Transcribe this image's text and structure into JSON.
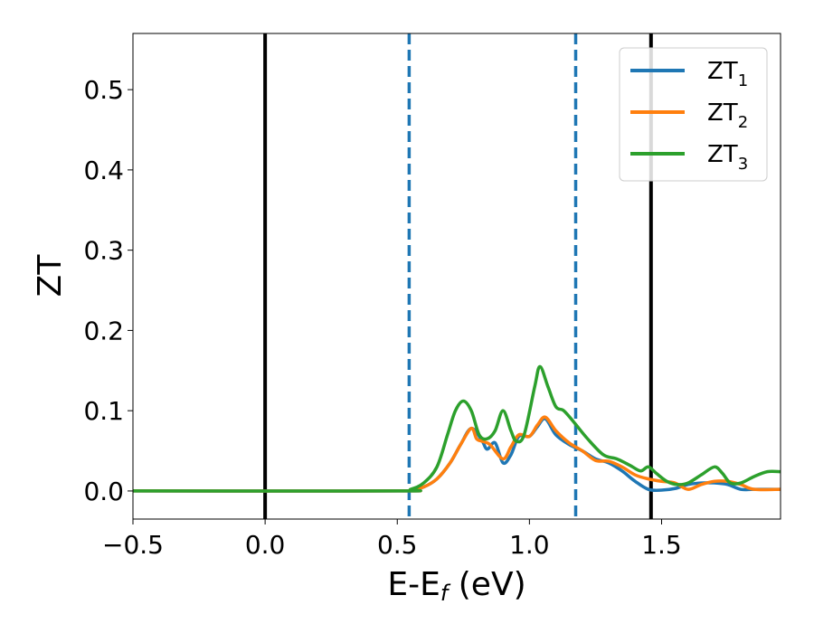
{
  "chart_data": {
    "type": "line",
    "xlabel": "E-E",
    "xlabel_sub": "f",
    "xlabel_unit": " (eV)",
    "ylabel": "ZT",
    "xlim": [
      -0.5,
      1.95
    ],
    "ylim": [
      -0.035,
      0.57
    ],
    "xticks": [
      -0.5,
      0.0,
      0.5,
      1.0,
      1.5
    ],
    "xtick_labels": [
      "−0.5",
      "0.0",
      "0.5",
      "1.0",
      "1.5"
    ],
    "yticks": [
      0.0,
      0.1,
      0.2,
      0.3,
      0.4,
      0.5
    ],
    "ytick_labels": [
      "0.0",
      "0.1",
      "0.2",
      "0.3",
      "0.4",
      "0.5"
    ],
    "grid": false,
    "legend_position": "top-right",
    "vlines": [
      {
        "x": 0.0,
        "color": "#000000",
        "style": "solid"
      },
      {
        "x": 1.46,
        "color": "#000000",
        "style": "solid"
      },
      {
        "x": 0.545,
        "color": "#1f77b4",
        "style": "dashed"
      },
      {
        "x": 1.175,
        "color": "#1f77b4",
        "style": "dashed"
      }
    ],
    "series": [
      {
        "name": "ZT",
        "sub": "1",
        "color": "#1f77b4",
        "points": [
          [
            -0.5,
            0
          ],
          [
            0.5,
            0
          ],
          [
            0.55,
            0.001
          ],
          [
            0.6,
            0.005
          ],
          [
            0.65,
            0.015
          ],
          [
            0.7,
            0.035
          ],
          [
            0.74,
            0.058
          ],
          [
            0.78,
            0.078
          ],
          [
            0.82,
            0.063
          ],
          [
            0.84,
            0.052
          ],
          [
            0.87,
            0.06
          ],
          [
            0.9,
            0.035
          ],
          [
            0.93,
            0.045
          ],
          [
            0.96,
            0.068
          ],
          [
            1.0,
            0.068
          ],
          [
            1.03,
            0.08
          ],
          [
            1.06,
            0.09
          ],
          [
            1.1,
            0.07
          ],
          [
            1.15,
            0.058
          ],
          [
            1.2,
            0.05
          ],
          [
            1.25,
            0.04
          ],
          [
            1.3,
            0.035
          ],
          [
            1.35,
            0.025
          ],
          [
            1.4,
            0.012
          ],
          [
            1.45,
            0.002
          ],
          [
            1.5,
            0.001
          ],
          [
            1.55,
            0.003
          ],
          [
            1.6,
            0.008
          ],
          [
            1.65,
            0.01
          ],
          [
            1.7,
            0.01
          ],
          [
            1.75,
            0.008
          ],
          [
            1.8,
            0.002
          ],
          [
            1.85,
            0.002
          ],
          [
            1.95,
            0.002
          ]
        ]
      },
      {
        "name": "ZT",
        "sub": "2",
        "color": "#ff7f0e",
        "points": [
          [
            -0.5,
            0
          ],
          [
            0.5,
            0
          ],
          [
            0.55,
            0.001
          ],
          [
            0.6,
            0.005
          ],
          [
            0.65,
            0.015
          ],
          [
            0.7,
            0.035
          ],
          [
            0.74,
            0.058
          ],
          [
            0.78,
            0.078
          ],
          [
            0.8,
            0.065
          ],
          [
            0.82,
            0.062
          ],
          [
            0.85,
            0.058
          ],
          [
            0.9,
            0.04
          ],
          [
            0.93,
            0.055
          ],
          [
            0.96,
            0.07
          ],
          [
            1.0,
            0.068
          ],
          [
            1.03,
            0.082
          ],
          [
            1.06,
            0.092
          ],
          [
            1.1,
            0.075
          ],
          [
            1.15,
            0.06
          ],
          [
            1.2,
            0.05
          ],
          [
            1.25,
            0.038
          ],
          [
            1.3,
            0.037
          ],
          [
            1.35,
            0.03
          ],
          [
            1.4,
            0.02
          ],
          [
            1.45,
            0.015
          ],
          [
            1.5,
            0.012
          ],
          [
            1.55,
            0.01
          ],
          [
            1.6,
            0.002
          ],
          [
            1.65,
            0.008
          ],
          [
            1.7,
            0.012
          ],
          [
            1.75,
            0.012
          ],
          [
            1.8,
            0.008
          ],
          [
            1.85,
            0.002
          ],
          [
            1.95,
            0.002
          ]
        ]
      },
      {
        "name": "ZT",
        "sub": "3",
        "color": "#2ca02c",
        "points": [
          [
            -0.5,
            0
          ],
          [
            0.5,
            0
          ],
          [
            0.55,
            0.002
          ],
          [
            0.6,
            0.01
          ],
          [
            0.65,
            0.03
          ],
          [
            0.69,
            0.07
          ],
          [
            0.72,
            0.1
          ],
          [
            0.75,
            0.112
          ],
          [
            0.78,
            0.1
          ],
          [
            0.81,
            0.07
          ],
          [
            0.84,
            0.065
          ],
          [
            0.87,
            0.075
          ],
          [
            0.9,
            0.1
          ],
          [
            0.93,
            0.075
          ],
          [
            0.95,
            0.062
          ],
          [
            0.98,
            0.07
          ],
          [
            1.02,
            0.13
          ],
          [
            1.04,
            0.155
          ],
          [
            1.07,
            0.13
          ],
          [
            1.1,
            0.105
          ],
          [
            1.13,
            0.1
          ],
          [
            1.17,
            0.085
          ],
          [
            1.22,
            0.065
          ],
          [
            1.28,
            0.045
          ],
          [
            1.33,
            0.04
          ],
          [
            1.38,
            0.032
          ],
          [
            1.42,
            0.025
          ],
          [
            1.45,
            0.03
          ],
          [
            1.48,
            0.022
          ],
          [
            1.52,
            0.012
          ],
          [
            1.56,
            0.008
          ],
          [
            1.6,
            0.01
          ],
          [
            1.65,
            0.02
          ],
          [
            1.7,
            0.03
          ],
          [
            1.73,
            0.022
          ],
          [
            1.76,
            0.01
          ],
          [
            1.8,
            0.01
          ],
          [
            1.85,
            0.018
          ],
          [
            1.9,
            0.024
          ],
          [
            1.95,
            0.024
          ]
        ]
      }
    ]
  }
}
